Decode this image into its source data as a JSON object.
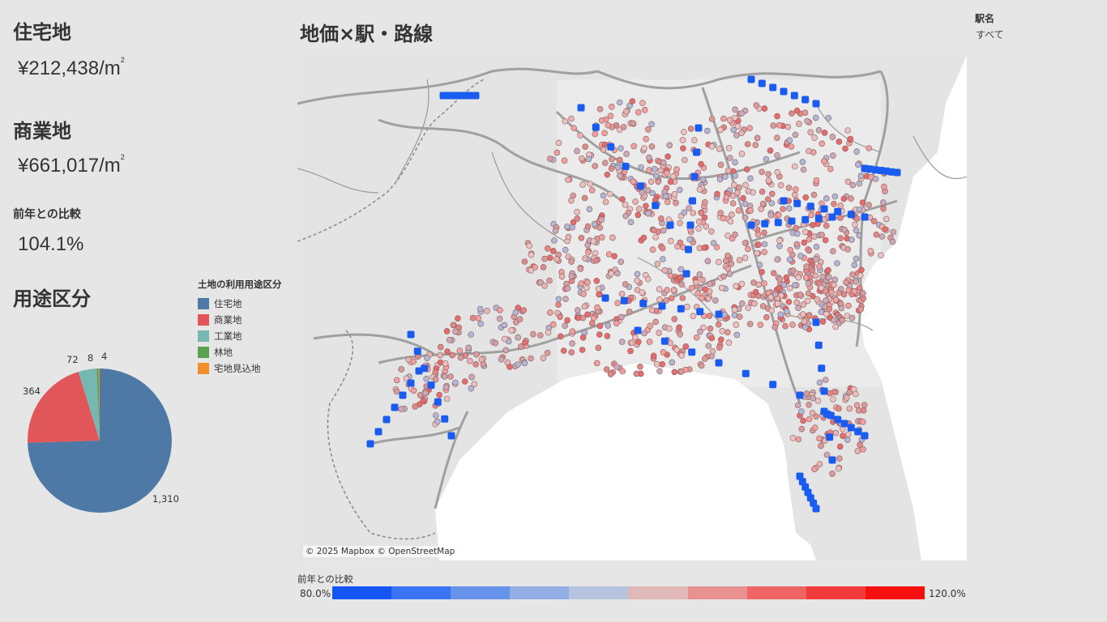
{
  "kpis": {
    "residential": {
      "label": "住宅地",
      "value": "¥212,438/m",
      "unit_sup": "2"
    },
    "commercial": {
      "label": "商業地",
      "value": "¥661,017/m",
      "unit_sup": "2"
    },
    "yoy": {
      "label": "前年との比較",
      "value": "104.1%"
    }
  },
  "usage_section_title": "用途区分",
  "map_title": "地価×駅・路線",
  "filter": {
    "label": "駅名",
    "value": "すべて"
  },
  "legend": {
    "title": "土地の利用用途区分",
    "items": [
      {
        "label": "住宅地",
        "color": "#4e79a7"
      },
      {
        "label": "商業地",
        "color": "#e15759"
      },
      {
        "label": "工業地",
        "color": "#76b7b2"
      },
      {
        "label": "林地",
        "color": "#59a14f"
      },
      {
        "label": "宅地見込地",
        "color": "#f28e2b"
      }
    ]
  },
  "chart_data": {
    "type": "pie",
    "categories": [
      "住宅地",
      "商業地",
      "工業地",
      "林地",
      "宅地見込地"
    ],
    "values": [
      1310,
      364,
      72,
      8,
      4
    ],
    "labels": [
      "1,310",
      "364",
      "72",
      "8",
      "4"
    ],
    "colors": [
      "#4e79a7",
      "#e15759",
      "#76b7b2",
      "#59a14f",
      "#f28e2b"
    ]
  },
  "map": {
    "attribution": "© 2025 Mapbox © OpenStreetMap",
    "station_color": "#1a5cf0"
  },
  "colorbar": {
    "title": "前年との比較",
    "min_label": "80.0%",
    "max_label": "120.0%",
    "colors": [
      "#1456f5",
      "#3a73f4",
      "#6793ea",
      "#93aee4",
      "#b7c4e0",
      "#e0b8b8",
      "#e99090",
      "#ef6464",
      "#f33b3b",
      "#f71010"
    ]
  }
}
